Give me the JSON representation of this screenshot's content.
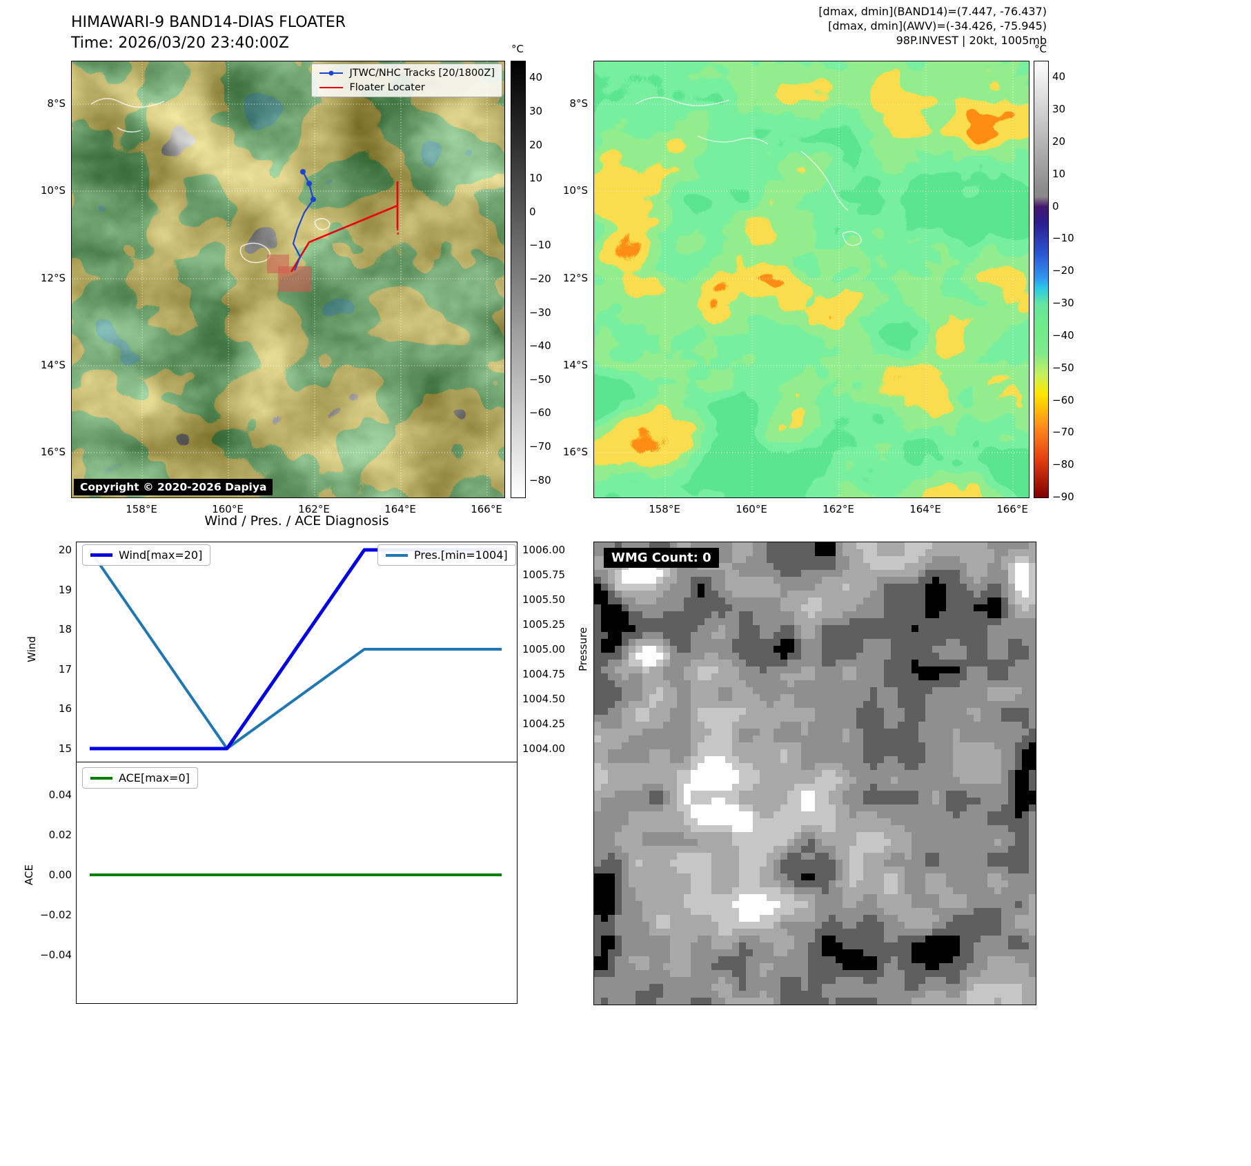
{
  "band14": {
    "title": "HIMAWARI-9 BAND14-DIAS FLOATER",
    "time_line": "Time: 2026/03/20 23:40:00Z",
    "legend_track": "JTWC/NHC Tracks [20/1800Z]",
    "legend_floater": "Floater Locater",
    "copyright": "Copyright © 2020-2026 Dapiya",
    "unit": "°C",
    "cbar_ticks": [
      "40",
      "30",
      "20",
      "10",
      "0",
      "−10",
      "−20",
      "−30",
      "−40",
      "−50",
      "−60",
      "−70",
      "−80"
    ]
  },
  "awv": {
    "header1": "[dmax, dmin](BAND14)=(7.447, -76.437)",
    "header2": "[dmax, dmin](AWV)=(-34.426, -75.945)",
    "header3": "98P.INVEST | 20kt, 1005mb",
    "unit": "°C",
    "cbar_ticks": [
      "40",
      "30",
      "20",
      "10",
      "0",
      "−10",
      "−20",
      "−30",
      "−40",
      "−50",
      "−60",
      "−70",
      "−80",
      "−90"
    ]
  },
  "geo": {
    "x_ticks": [
      "158°E",
      "160°E",
      "162°E",
      "164°E",
      "166°E"
    ],
    "y_ticks": [
      "8°S",
      "10°S",
      "12°S",
      "14°S",
      "16°S"
    ]
  },
  "diagnosis": {
    "title": "Wind / Pres. / ACE Diagnosis",
    "legend_wind": "Wind[max=20]",
    "legend_pres": "Pres.[min=1004]",
    "legend_ace": "ACE[max=0]",
    "ylabel_wind": "Wind",
    "ylabel_pressure": "Pressure",
    "ylabel_ace": "ACE",
    "wind_ticks": [
      "20",
      "19",
      "18",
      "17",
      "16",
      "15"
    ],
    "pres_ticks": [
      "1006.00",
      "1005.75",
      "1005.50",
      "1005.25",
      "1005.00",
      "1004.75",
      "1004.50",
      "1004.25",
      "1004.00"
    ],
    "ace_ticks": [
      "0.04",
      "0.02",
      "0.00",
      "−0.02",
      "−0.04"
    ]
  },
  "wmg": {
    "label": "WMG Count: 0"
  },
  "colors": {
    "wind": "#0000e0",
    "pres": "#1f77b4",
    "ace": "#008000",
    "track": "#1c45cc",
    "floater": "#e8000b",
    "floater_fill": "#cf5b52"
  },
  "chart_data": [
    {
      "type": "line",
      "title": "Wind / Pres. / ACE Diagnosis",
      "x": [
        0,
        1,
        2,
        3
      ],
      "series": [
        {
          "name": "Wind[max=20]",
          "axis": "left",
          "values": [
            15,
            15,
            20,
            20
          ],
          "color": "#0000e0"
        },
        {
          "name": "Pres.[min=1004]",
          "axis": "right",
          "values": [
            1006,
            1004,
            1005,
            1005
          ],
          "color": "#1f77b4"
        }
      ],
      "ylabel_left": "Wind",
      "left_ylim": [
        15,
        20
      ],
      "ylabel_right": "Pressure",
      "right_ylim": [
        1004,
        1006
      ],
      "legend_position": "upper left / upper right",
      "grid": false
    },
    {
      "type": "line",
      "x": [
        0,
        1,
        2,
        3
      ],
      "series": [
        {
          "name": "ACE[max=0]",
          "values": [
            0,
            0,
            0,
            0
          ],
          "color": "#008000"
        }
      ],
      "ylabel": "ACE",
      "ylim": [
        -0.05,
        0.05
      ],
      "legend_position": "upper left",
      "grid": false
    }
  ]
}
